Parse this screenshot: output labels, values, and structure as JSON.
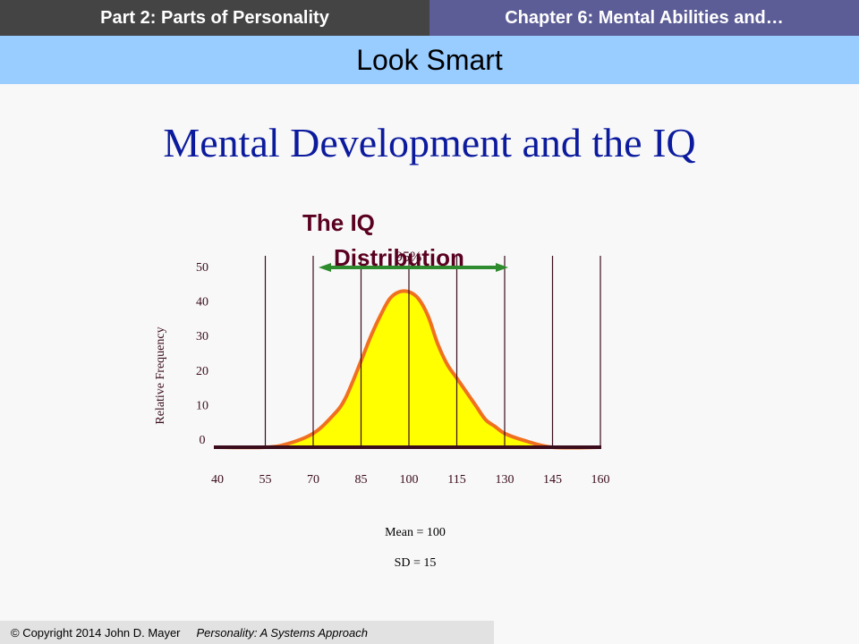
{
  "header": {
    "left": "Part 2:  Parts of Personality",
    "right": "Chapter 6: Mental Abilities and…"
  },
  "subheader": "Look Smart",
  "slide_title": "Mental Development and the  IQ",
  "chart_data": {
    "type": "area",
    "title_lines": [
      "The IQ",
      "Distribution"
    ],
    "ylabel": "Relative Frequency",
    "xlabel": "",
    "x_ticks": [
      40,
      55,
      70,
      85,
      100,
      115,
      130,
      145,
      160
    ],
    "y_ticks": [
      0,
      10,
      20,
      30,
      40,
      50
    ],
    "xlim": [
      40,
      160
    ],
    "ylim": [
      0,
      50
    ],
    "grid_x": true,
    "annotation": "95%",
    "annotation_range": [
      70,
      130
    ],
    "x": [
      40,
      55,
      62,
      70,
      76,
      80,
      85,
      88,
      91,
      94,
      97,
      100,
      103,
      106,
      109,
      112,
      115,
      118,
      121,
      124,
      127,
      130,
      136,
      145,
      160
    ],
    "y": [
      0,
      0,
      1,
      4,
      9,
      14,
      25,
      32,
      38,
      43,
      45,
      45,
      43,
      38,
      30,
      24,
      20,
      16,
      12,
      8,
      6,
      4,
      2,
      0,
      0
    ],
    "stats": [
      "Mean = 100",
      "SD = 15"
    ],
    "colors": {
      "fill": "#ffff00",
      "curve": "#f07020",
      "gridline": "#3a0c1c",
      "baseline": "#3a0c1c",
      "arrow": "#2e8b2e",
      "chart_title": "#5a0020"
    }
  },
  "footer": {
    "copyright": "© Copyright 2014  John D. Mayer",
    "book": "Personality: A Systems Approach"
  }
}
